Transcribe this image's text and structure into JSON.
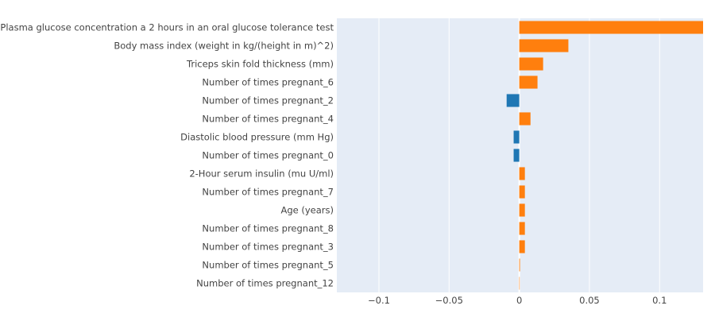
{
  "chart_data": {
    "type": "bar",
    "orientation": "horizontal",
    "categories": [
      "Plasma glucose concentration a 2 hours in an oral glucose tolerance test",
      "Body mass index (weight in kg/(height in m)^2)",
      "Triceps skin fold thickness (mm)",
      "Number of times pregnant_6",
      "Number of times pregnant_2",
      "Number of times pregnant_4",
      "Diastolic blood pressure (mm Hg)",
      "Number of times pregnant_0",
      "2-Hour serum insulin (mu U/ml)",
      "Number of times pregnant_7",
      "Age (years)",
      "Number of times pregnant_8",
      "Number of times pregnant_3",
      "Number of times pregnant_5",
      "Number of times pregnant_12"
    ],
    "values": [
      0.131,
      0.035,
      0.017,
      0.013,
      -0.009,
      0.008,
      -0.004,
      -0.004,
      0.004,
      0.004,
      0.004,
      0.004,
      0.004,
      0.0005,
      0.0
    ],
    "xlim": [
      -0.13,
      0.131
    ],
    "xticks": [
      -0.1,
      -0.05,
      0,
      0.05,
      0.1
    ],
    "xtick_labels": [
      "−0.1",
      "−0.05",
      "0",
      "0.05",
      "0.1"
    ],
    "colors": {
      "positive": "#ff7f0e",
      "negative": "#1f77b4",
      "plot_bg": "#e5ecf6",
      "grid": "#ffffff"
    },
    "grid": true,
    "title": "",
    "xlabel": "",
    "ylabel": ""
  }
}
